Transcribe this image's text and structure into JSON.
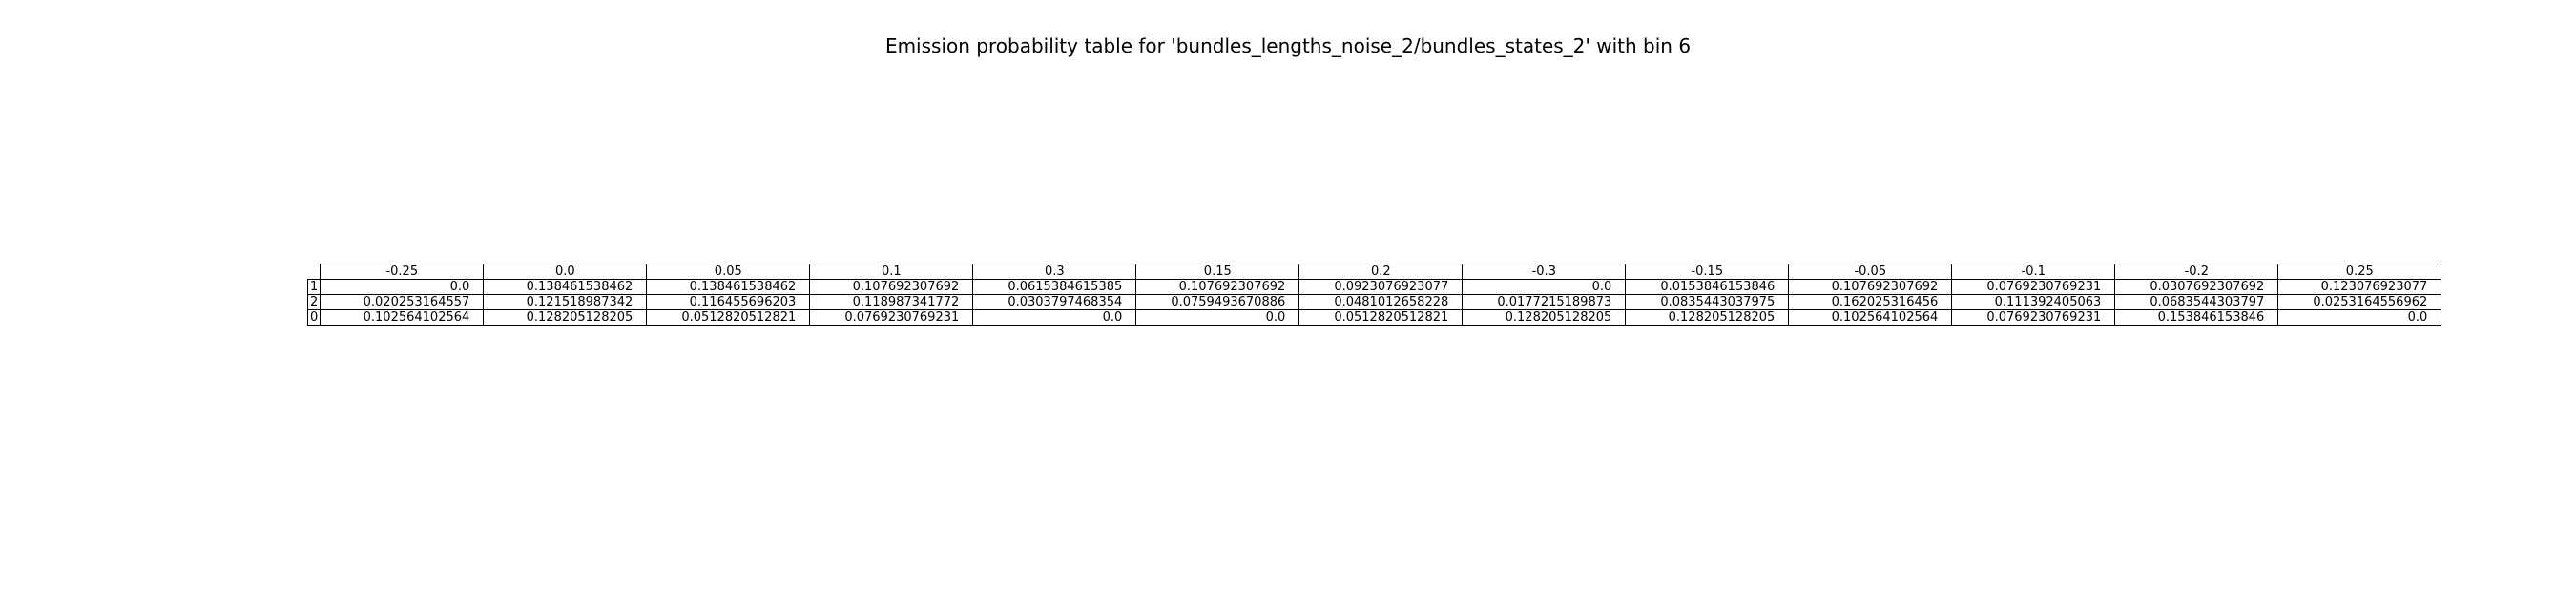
{
  "chart_data": {
    "type": "table",
    "title": "Emission probability table for 'bundles_lengths_noise_2/bundles_states_2' with bin 6",
    "columns": [
      "-0.25",
      "0.0",
      "0.05",
      "0.1",
      "0.3",
      "0.15",
      "0.2",
      "-0.3",
      "-0.15",
      "-0.05",
      "-0.1",
      "-0.2",
      "0.25"
    ],
    "rows": [
      {
        "label": "1",
        "cells": [
          "0.0",
          "0.138461538462",
          "0.138461538462",
          "0.107692307692",
          "0.0615384615385",
          "0.107692307692",
          "0.0923076923077",
          "0.0",
          "0.0153846153846",
          "0.107692307692",
          "0.0769230769231",
          "0.0307692307692",
          "0.123076923077"
        ]
      },
      {
        "label": "2",
        "cells": [
          "0.020253164557",
          "0.121518987342",
          "0.116455696203",
          "0.118987341772",
          "0.0303797468354",
          "0.0759493670886",
          "0.0481012658228",
          "0.0177215189873",
          "0.0835443037975",
          "0.162025316456",
          "0.111392405063",
          "0.0683544303797",
          "0.0253164556962"
        ]
      },
      {
        "label": "0",
        "cells": [
          "0.102564102564",
          "0.128205128205",
          "0.0512820512821",
          "0.0769230769231",
          "0.0",
          "0.0",
          "0.0512820512821",
          "0.128205128205",
          "0.128205128205",
          "0.102564102564",
          "0.0769230769231",
          "0.153846153846",
          "0.0"
        ]
      }
    ]
  }
}
